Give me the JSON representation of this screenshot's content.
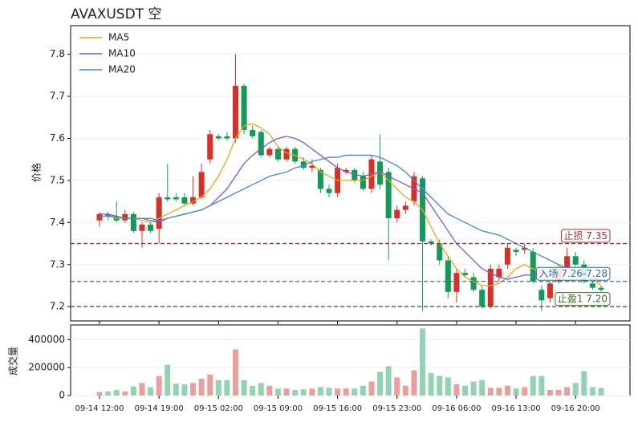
{
  "chart_data": {
    "type": "candlestick",
    "title": "AVAXUSDT 空",
    "ylabel": "价格",
    "volume_label": "成交量",
    "x": [
      "09-14 12:00",
      "09-14 13:00",
      "09-14 14:00",
      "09-14 15:00",
      "09-14 16:00",
      "09-14 17:00",
      "09-14 18:00",
      "09-14 19:00",
      "09-14 20:00",
      "09-14 21:00",
      "09-14 22:00",
      "09-14 23:00",
      "09-15 00:00",
      "09-15 01:00",
      "09-15 02:00",
      "09-15 03:00",
      "09-15 04:00",
      "09-15 05:00",
      "09-15 06:00",
      "09-15 07:00",
      "09-15 08:00",
      "09-15 09:00",
      "09-15 10:00",
      "09-15 11:00",
      "09-15 12:00",
      "09-15 13:00",
      "09-15 14:00",
      "09-15 15:00",
      "09-15 16:00",
      "09-15 17:00",
      "09-15 18:00",
      "09-15 19:00",
      "09-15 20:00",
      "09-15 21:00",
      "09-15 22:00",
      "09-15 23:00",
      "09-16 00:00",
      "09-16 01:00",
      "09-16 02:00",
      "09-16 03:00",
      "09-16 04:00",
      "09-16 05:00",
      "09-16 06:00",
      "09-16 07:00",
      "09-16 08:00",
      "09-16 09:00",
      "09-16 10:00",
      "09-16 11:00",
      "09-16 12:00",
      "09-16 13:00",
      "09-16 14:00",
      "09-16 15:00",
      "09-16 16:00",
      "09-16 17:00",
      "09-16 18:00",
      "09-16 19:00",
      "09-16 20:00",
      "09-16 21:00",
      "09-16 22:00",
      "09-16 23:00"
    ],
    "xticks": [
      "09-14 12:00",
      "09-14 19:00",
      "09-15 02:00",
      "09-15 09:00",
      "09-15 16:00",
      "09-15 23:00",
      "09-16 06:00",
      "09-16 13:00",
      "09-16 20:00"
    ],
    "open": [
      7.405,
      7.42,
      7.415,
      7.405,
      7.42,
      7.38,
      7.395,
      7.385,
      7.46,
      7.46,
      7.46,
      7.445,
      7.46,
      7.55,
      7.605,
      7.605,
      7.6,
      7.725,
      7.62,
      7.615,
      7.56,
      7.575,
      7.55,
      7.575,
      7.545,
      7.53,
      7.525,
      7.48,
      7.47,
      7.52,
      7.525,
      7.51,
      7.48,
      7.545,
      7.52,
      7.41,
      7.43,
      7.45,
      7.505,
      7.355,
      7.35,
      7.31,
      7.235,
      7.28,
      7.27,
      7.24,
      7.2,
      7.27,
      7.3,
      7.335,
      7.335,
      7.33,
      7.24,
      7.22,
      7.26,
      7.29,
      7.32,
      7.3,
      7.255,
      7.245
    ],
    "high": [
      7.425,
      7.425,
      7.45,
      7.43,
      7.425,
      7.4,
      7.4,
      7.47,
      7.54,
      7.47,
      7.47,
      7.51,
      7.54,
      7.62,
      7.61,
      7.615,
      7.8,
      7.73,
      7.63,
      7.62,
      7.58,
      7.58,
      7.58,
      7.58,
      7.555,
      7.55,
      7.53,
      7.49,
      7.54,
      7.53,
      7.53,
      7.52,
      7.56,
      7.61,
      7.53,
      7.44,
      7.45,
      7.52,
      7.51,
      7.36,
      7.36,
      7.32,
      7.29,
      7.29,
      7.28,
      7.25,
      7.3,
      7.3,
      7.35,
      7.34,
      7.35,
      7.34,
      7.25,
      7.26,
      7.3,
      7.34,
      7.33,
      7.31,
      7.26,
      7.25
    ],
    "low": [
      7.39,
      7.405,
      7.4,
      7.4,
      7.375,
      7.34,
      7.375,
      7.35,
      7.45,
      7.45,
      7.44,
      7.44,
      7.455,
      7.54,
      7.595,
      7.595,
      7.59,
      7.61,
      7.6,
      7.555,
      7.555,
      7.545,
      7.545,
      7.54,
      7.525,
      7.52,
      7.47,
      7.46,
      7.46,
      7.515,
      7.495,
      7.475,
      7.47,
      7.48,
      7.31,
      7.4,
      7.42,
      7.44,
      7.19,
      7.345,
      7.3,
      7.22,
      7.21,
      7.27,
      7.235,
      7.195,
      7.195,
      7.26,
      7.29,
      7.32,
      7.325,
      7.255,
      7.19,
      7.21,
      7.255,
      7.285,
      7.295,
      7.255,
      7.24,
      7.235
    ],
    "close": [
      7.42,
      7.415,
      7.405,
      7.42,
      7.38,
      7.395,
      7.38,
      7.46,
      7.455,
      7.455,
      7.445,
      7.46,
      7.52,
      7.61,
      7.6,
      7.6,
      7.725,
      7.62,
      7.605,
      7.56,
      7.575,
      7.55,
      7.575,
      7.545,
      7.53,
      7.535,
      7.48,
      7.47,
      7.53,
      7.525,
      7.5,
      7.48,
      7.55,
      7.49,
      7.41,
      7.43,
      7.44,
      7.51,
      7.355,
      7.35,
      7.31,
      7.235,
      7.28,
      7.275,
      7.24,
      7.2,
      7.29,
      7.29,
      7.34,
      7.33,
      7.34,
      7.26,
      7.215,
      7.255,
      7.29,
      7.32,
      7.3,
      7.26,
      7.245,
      7.24
    ],
    "volume": [
      25000,
      30000,
      40000,
      30000,
      65000,
      90000,
      60000,
      140000,
      220000,
      85000,
      80000,
      90000,
      120000,
      150000,
      110000,
      110000,
      330000,
      110000,
      70000,
      90000,
      70000,
      50000,
      50000,
      40000,
      45000,
      50000,
      60000,
      55000,
      50000,
      50000,
      50000,
      70000,
      100000,
      170000,
      210000,
      130000,
      70000,
      180000,
      480000,
      160000,
      140000,
      130000,
      80000,
      70000,
      100000,
      110000,
      55000,
      55000,
      70000,
      50000,
      60000,
      140000,
      140000,
      40000,
      40000,
      60000,
      90000,
      175000,
      60000,
      55000
    ],
    "up_color": "#d73027",
    "down_color": "#139a58",
    "up_volume_color": "#e8a09c",
    "down_volume_color": "#93d3b3",
    "series": [
      {
        "name": "MA5",
        "color": "#e6a817",
        "values": [
          7.415,
          7.415,
          7.41,
          7.41,
          7.41,
          7.405,
          7.4,
          7.41,
          7.42,
          7.43,
          7.44,
          7.45,
          7.46,
          7.48,
          7.51,
          7.55,
          7.6,
          7.63,
          7.635,
          7.625,
          7.61,
          7.58,
          7.565,
          7.56,
          7.55,
          7.54,
          7.52,
          7.51,
          7.5,
          7.5,
          7.5,
          7.5,
          7.51,
          7.52,
          7.5,
          7.48,
          7.46,
          7.45,
          7.43,
          7.39,
          7.35,
          7.32,
          7.29,
          7.27,
          7.26,
          7.25,
          7.25,
          7.255,
          7.27,
          7.29,
          7.3,
          7.29,
          7.28,
          7.27,
          7.27,
          7.26,
          7.265,
          7.27,
          7.265,
          7.25
        ]
      },
      {
        "name": "MA10",
        "color": "#7e5bc4",
        "values": [
          7.42,
          7.42,
          7.415,
          7.41,
          7.41,
          7.41,
          7.405,
          7.4,
          7.41,
          7.415,
          7.42,
          7.425,
          7.43,
          7.44,
          7.46,
          7.48,
          7.51,
          7.54,
          7.56,
          7.575,
          7.59,
          7.6,
          7.605,
          7.6,
          7.59,
          7.575,
          7.56,
          7.545,
          7.53,
          7.52,
          7.515,
          7.51,
          7.515,
          7.52,
          7.51,
          7.5,
          7.49,
          7.48,
          7.47,
          7.44,
          7.41,
          7.38,
          7.35,
          7.33,
          7.31,
          7.29,
          7.28,
          7.27,
          7.265,
          7.27,
          7.275,
          7.275,
          7.28,
          7.28,
          7.28,
          7.28,
          7.28,
          7.275,
          7.27,
          7.265
        ]
      },
      {
        "name": "MA20",
        "color": "#3f8bd0",
        "values": [
          7.415,
          7.415,
          7.415,
          7.41,
          7.41,
          7.41,
          7.41,
          7.405,
          7.41,
          7.415,
          7.42,
          7.425,
          7.43,
          7.44,
          7.45,
          7.46,
          7.47,
          7.48,
          7.49,
          7.5,
          7.51,
          7.515,
          7.52,
          7.53,
          7.535,
          7.545,
          7.55,
          7.555,
          7.555,
          7.56,
          7.56,
          7.56,
          7.56,
          7.555,
          7.545,
          7.535,
          7.52,
          7.5,
          7.48,
          7.46,
          7.44,
          7.42,
          7.41,
          7.4,
          7.39,
          7.38,
          7.375,
          7.37,
          7.36,
          7.35,
          7.34,
          7.33,
          7.32,
          7.31,
          7.3,
          7.29,
          7.285,
          7.28,
          7.27,
          7.265
        ]
      }
    ],
    "levels": [
      {
        "label": "止损 7.35",
        "value": 7.35,
        "color": "#9e3333"
      },
      {
        "label": "入场 7.26-7.28",
        "value": 7.26,
        "color": "#2e6e9e"
      },
      {
        "label": "止盈1 7.20",
        "value": 7.2,
        "color": "#3d6b2a"
      }
    ],
    "ylim": [
      7.166,
      7.868
    ],
    "yticks": [
      7.2,
      7.3,
      7.4,
      7.5,
      7.6,
      7.7,
      7.8
    ],
    "volume_lim": [
      0,
      505000
    ],
    "volume_ticks": [
      0,
      200000,
      400000
    ],
    "grid": true,
    "legend": "upper left"
  }
}
